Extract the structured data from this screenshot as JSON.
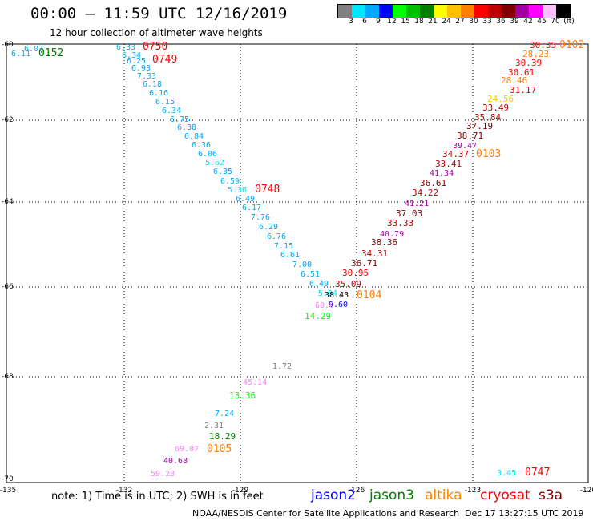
{
  "header": {
    "title": "00:00 – 11:59 UTC 12/16/2019",
    "subtitle": "12 hour collection of altimeter wave heights"
  },
  "legend": {
    "swatches": [
      "#808080",
      "#00e5ff",
      "#00a8ff",
      "#0000ff",
      "#00ff00",
      "#00c000",
      "#008000",
      "#ffff00",
      "#ffc000",
      "#ff8000",
      "#ff0000",
      "#c00000",
      "#800000",
      "#a000a0",
      "#ff00ff",
      "#ffc0ff",
      "#000000"
    ],
    "labels": [
      "3",
      "6",
      "9",
      "12",
      "15",
      "18",
      "21",
      "24",
      "27",
      "30",
      "33",
      "36",
      "39",
      "42",
      "45",
      "70",
      "(ft)"
    ]
  },
  "map": {
    "lon_range": [
      -135,
      -120
    ],
    "lat_range": [
      -70,
      -60
    ],
    "x_ticks": [
      "-135",
      "-132",
      "-129",
      "-126",
      "-123",
      "-120"
    ],
    "y_ticks": [
      "-60",
      "-62",
      "-64",
      "-66",
      "-68",
      "-70"
    ]
  },
  "observations": {
    "jason2": [
      {
        "v": "9.60"
      }
    ],
    "jason3": [
      {
        "v": "0152"
      },
      {
        "v": "18.29"
      },
      {
        "v": "13.36"
      },
      {
        "v": "14.29"
      }
    ],
    "altika": [
      {
        "v": "0105"
      },
      {
        "v": "0104"
      },
      {
        "v": "0103"
      },
      {
        "v": "0102"
      },
      {
        "v": "28.46"
      },
      {
        "v": "31.17"
      },
      {
        "v": "24.56"
      },
      {
        "v": "28.23"
      }
    ],
    "cryosat": [
      {
        "v": "0750"
      },
      {
        "v": "0749"
      },
      {
        "v": "0748"
      },
      {
        "v": "0747"
      },
      {
        "v": "35.09"
      },
      {
        "v": "30.95"
      },
      {
        "v": "36.71"
      },
      {
        "v": "34.31"
      },
      {
        "v": "38.36"
      },
      {
        "v": "33.33"
      },
      {
        "v": "37.03"
      },
      {
        "v": "34.22"
      },
      {
        "v": "36.61"
      },
      {
        "v": "33.41"
      },
      {
        "v": "34.37"
      },
      {
        "v": "38.71"
      },
      {
        "v": "37.19"
      },
      {
        "v": "35.84"
      },
      {
        "v": "33.49"
      },
      {
        "v": "30.61"
      },
      {
        "v": "30.39"
      },
      {
        "v": "30.35"
      }
    ],
    "s3a": [
      {
        "v": "6.07"
      },
      {
        "v": "6.11"
      },
      {
        "v": "6.33"
      },
      {
        "v": "6.34"
      },
      {
        "v": "6.25"
      },
      {
        "v": "6.93"
      },
      {
        "v": "7.33"
      },
      {
        "v": "6.18"
      },
      {
        "v": "6.16"
      },
      {
        "v": "6.15"
      },
      {
        "v": "6.34"
      },
      {
        "v": "6.75"
      },
      {
        "v": "6.38"
      },
      {
        "v": "6.84"
      },
      {
        "v": "6.36"
      },
      {
        "v": "6.06"
      },
      {
        "v": "5.62"
      },
      {
        "v": "6.35"
      },
      {
        "v": "6.59"
      },
      {
        "v": "5.36"
      },
      {
        "v": "6.49"
      },
      {
        "v": "6.17"
      },
      {
        "v": "7.76"
      },
      {
        "v": "6.29"
      },
      {
        "v": "6.76"
      },
      {
        "v": "7.15"
      },
      {
        "v": "6.61"
      },
      {
        "v": "7.00"
      },
      {
        "v": "6.51"
      },
      {
        "v": "6.49"
      },
      {
        "v": "5.84"
      },
      {
        "v": "7.24"
      },
      {
        "v": "3.45"
      }
    ],
    "other": [
      {
        "v": "38.43",
        "color": "#000000"
      },
      {
        "v": "60.0",
        "color": "#ff80ff"
      },
      {
        "v": "1.72",
        "color": "#808080"
      },
      {
        "v": "45.14",
        "color": "#ff80ff"
      },
      {
        "v": "2.31",
        "color": "#808080"
      },
      {
        "v": "69.07",
        "color": "#ff80ff"
      },
      {
        "v": "40.68",
        "color": "#a000a0"
      },
      {
        "v": "59.23",
        "color": "#ff80ff"
      },
      {
        "v": "39.47",
        "color": "#a000a0"
      },
      {
        "v": "41.34",
        "color": "#a000a0"
      },
      {
        "v": "41.21",
        "color": "#a000a0"
      },
      {
        "v": "40.79",
        "color": "#a000a0"
      }
    ]
  },
  "footer": {
    "note": "note:  1) Time is in UTC;  2) SWH is in feet",
    "satellites": [
      {
        "name": "jason2",
        "color": "#0000ff"
      },
      {
        "name": "jason3",
        "color": "#008000"
      },
      {
        "name": "altika",
        "color": "#ff8000"
      },
      {
        "name": "cryosat",
        "color": "#ff0000"
      },
      {
        "name": "s3a",
        "color": "#800000"
      }
    ],
    "credit": "NOAA/NESDIS Center for Satellite Applications and Research",
    "timestamp": "Dec 17 13:27:15 UTC 2019"
  }
}
